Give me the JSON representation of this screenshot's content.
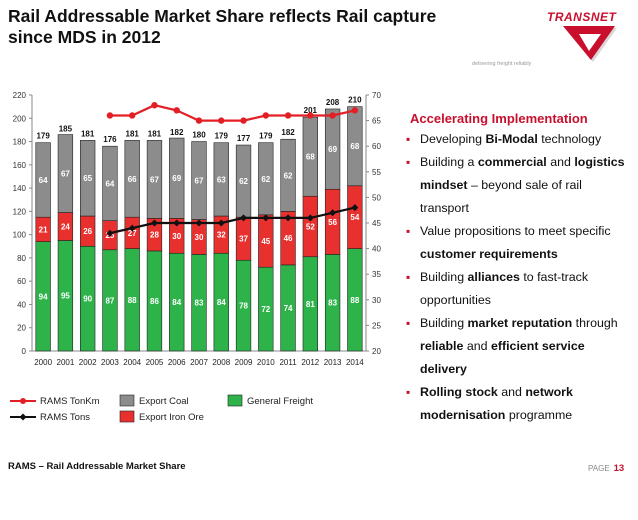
{
  "title_line1": "Rail Addressable Market Share reflects Rail capture",
  "title_line2": "since MDS in 2012",
  "logo_text": "TRANSNET",
  "tagline": "delivering freight reliably",
  "panel": {
    "heading": "Accelerating Implementation",
    "bullets": [
      {
        "segments": [
          {
            "t": "Developing ",
            "b": false
          },
          {
            "t": "Bi-Modal",
            "b": true
          },
          {
            "t": " technology",
            "b": false
          }
        ]
      },
      {
        "segments": [
          {
            "t": "Building a ",
            "b": false
          },
          {
            "t": "commercial",
            "b": true
          },
          {
            "t": " and ",
            "b": false
          },
          {
            "t": "logistics mindset",
            "b": true
          },
          {
            "t": " – beyond sale of rail transport",
            "b": false
          }
        ]
      },
      {
        "segments": [
          {
            "t": "Value propositions to meet specific ",
            "b": false
          },
          {
            "t": "customer requirements",
            "b": true
          }
        ]
      },
      {
        "segments": [
          {
            "t": "Building ",
            "b": false
          },
          {
            "t": "alliances",
            "b": true
          },
          {
            "t": " to fast-track opportunities",
            "b": false
          }
        ]
      },
      {
        "segments": [
          {
            "t": "Building ",
            "b": false
          },
          {
            "t": "market reputation",
            "b": true
          },
          {
            "t": " through ",
            "b": false
          },
          {
            "t": "reliable",
            "b": true
          },
          {
            "t": " and ",
            "b": false
          },
          {
            "t": "efficient service delivery",
            "b": true
          }
        ]
      },
      {
        "segments": [
          {
            "t": "Rolling stock",
            "b": true
          },
          {
            "t": " and ",
            "b": false
          },
          {
            "t": "network modernisation",
            "b": true
          },
          {
            "t": " programme",
            "b": false
          }
        ]
      }
    ]
  },
  "footer_left": "RAMS – Rail Addressable Market Share",
  "page_label": "PAGE",
  "page_number": "13",
  "colors": {
    "general_freight": "#2db34a",
    "export_iron_ore": "#e8312f",
    "export_coal": "#8c8c8c",
    "rams_tonkm": "#e31e24",
    "rams_tons": "#111111",
    "accent": "#c8102e"
  },
  "chart_data": {
    "type": "bar",
    "stacked": true,
    "categories": [
      "2000",
      "2001",
      "2002",
      "2003",
      "2004",
      "2005",
      "2006",
      "2007",
      "2008",
      "2009",
      "2010",
      "2011",
      "2012",
      "2013",
      "2014"
    ],
    "series": [
      {
        "name": "General Freight",
        "values": [
          94,
          95,
          90,
          87,
          88,
          86,
          84,
          83,
          84,
          78,
          72,
          74,
          81,
          83,
          88
        ],
        "axis": "left"
      },
      {
        "name": "Export Iron Ore",
        "values": [
          21,
          24,
          26,
          25,
          27,
          28,
          30,
          30,
          32,
          37,
          45,
          46,
          52,
          56,
          54
        ],
        "axis": "left"
      },
      {
        "name": "Export Coal",
        "values": [
          64,
          67,
          65,
          64,
          66,
          67,
          69,
          67,
          63,
          62,
          62,
          62,
          68,
          69,
          68
        ],
        "axis": "left"
      }
    ],
    "totals": [
      179,
      185,
      181,
      176,
      181,
      181,
      182,
      180,
      179,
      177,
      179,
      182,
      201,
      208,
      210
    ],
    "lines": [
      {
        "name": "RAMS TonKm",
        "values": [
          null,
          null,
          null,
          66,
          66,
          68,
          67,
          65,
          65,
          65,
          66,
          66,
          66,
          66,
          67
        ],
        "axis": "right"
      },
      {
        "name": "RAMS Tons",
        "values": [
          null,
          null,
          null,
          43,
          44,
          45,
          45,
          45,
          45,
          46,
          46,
          46,
          46,
          47,
          48
        ],
        "axis": "right"
      }
    ],
    "left_axis": {
      "min": 0,
      "max": 220,
      "ticks": [
        0,
        20,
        40,
        60,
        80,
        100,
        120,
        140,
        160,
        180,
        200,
        220
      ]
    },
    "right_axis": {
      "min": 20,
      "max": 70,
      "ticks": [
        20,
        25,
        30,
        35,
        40,
        45,
        50,
        55,
        60,
        65,
        70
      ]
    },
    "legend_position": "bottom",
    "legend": [
      {
        "name": "RAMS TonKm",
        "kind": "line-circle"
      },
      {
        "name": "Export Coal",
        "kind": "box"
      },
      {
        "name": "General Freight",
        "kind": "box"
      },
      {
        "name": "RAMS Tons",
        "kind": "line-diamond"
      },
      {
        "name": "Export Iron Ore",
        "kind": "box"
      }
    ]
  }
}
